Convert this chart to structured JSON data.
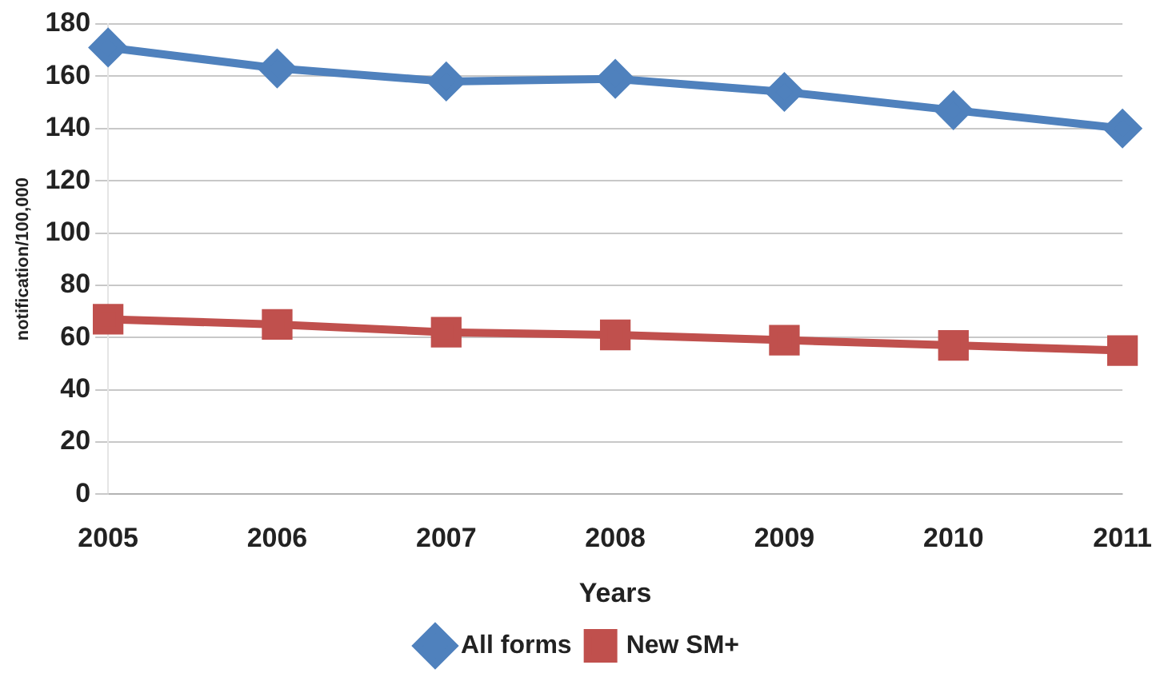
{
  "chart_data": {
    "type": "line",
    "xlabel": "Years",
    "ylabel": "notification/100,000",
    "categories": [
      "2005",
      "2006",
      "2007",
      "2008",
      "2009",
      "2010",
      "2011"
    ],
    "series": [
      {
        "name": "All forms",
        "color": "#4f81bd",
        "marker": "diamond",
        "values": [
          171,
          163,
          158,
          159,
          154,
          147,
          140
        ]
      },
      {
        "name": "New SM+",
        "color": "#c0504d",
        "marker": "square",
        "values": [
          67,
          65,
          62,
          61,
          59,
          57,
          55
        ]
      }
    ],
    "ylim": [
      0,
      180
    ],
    "yticks": [
      0,
      20,
      40,
      60,
      80,
      100,
      120,
      140,
      160,
      180
    ],
    "grid": "y",
    "legend": "bottom",
    "line_style": "solid"
  }
}
